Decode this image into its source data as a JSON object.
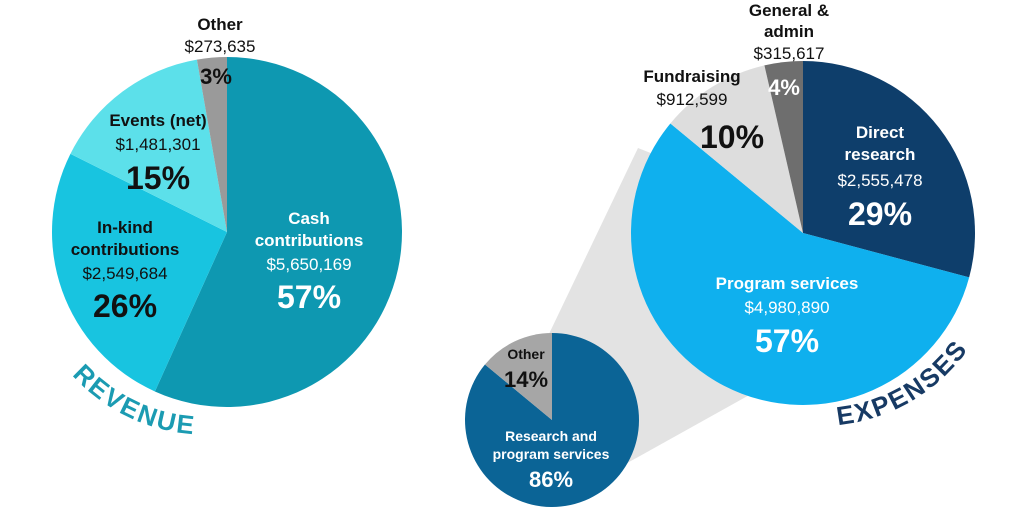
{
  "chart_data": [
    {
      "type": "pie",
      "title": "REVENUE",
      "colors": {
        "title": "#1b9bb2"
      },
      "slices": [
        {
          "name": "Cash contributions",
          "value": 5650169,
          "value_label": "$5,650,169",
          "percent": "57%",
          "color": "#0e98b1",
          "text_color": "#ffffff"
        },
        {
          "name": "In-kind contributions",
          "value": 2549684,
          "value_label": "$2,549,684",
          "percent": "26%",
          "color": "#18c4e0",
          "text_color": "#111111"
        },
        {
          "name": "Events (net)",
          "value": 1481301,
          "value_label": "$1,481,301",
          "percent": "15%",
          "color": "#5ce0ea",
          "text_color": "#111111"
        },
        {
          "name": "Other",
          "value": 273635,
          "value_label": "$273,635",
          "percent": "3%",
          "color": "#9a9a9a",
          "text_color": "#111111"
        }
      ]
    },
    {
      "type": "pie",
      "title": "EXPENSES",
      "colors": {
        "title": "#173a64"
      },
      "slices": [
        {
          "name": "Direct research",
          "value": 2555478,
          "value_label": "$2,555,478",
          "percent": "29%",
          "color": "#0e3e6b",
          "text_color": "#ffffff"
        },
        {
          "name": "Program services",
          "value": 4980890,
          "value_label": "$4,980,890",
          "percent": "57%",
          "color": "#0fb0ee",
          "text_color": "#ffffff"
        },
        {
          "name": "Fundraising",
          "value": 912599,
          "value_label": "$912,599",
          "percent": "10%",
          "color": "#dddddd",
          "text_color": "#111111"
        },
        {
          "name": "General & admin",
          "value": 315617,
          "value_label": "$315,617",
          "percent": "4%",
          "color": "#6e6e6e",
          "text_color": "#ffffff"
        }
      ]
    },
    {
      "type": "pie",
      "title": "",
      "slices": [
        {
          "name": "Research and program services",
          "value": 86,
          "percent": "86%",
          "color": "#0b6496",
          "text_color": "#ffffff"
        },
        {
          "name": "Other",
          "value": 14,
          "percent": "14%",
          "color": "#a6a6a6",
          "text_color": "#111111"
        }
      ]
    }
  ],
  "labels": {
    "revenue": {
      "cash_l1": "Cash",
      "cash_l2": "contributions",
      "inkind_l1": "In-kind",
      "inkind_l2": "contributions",
      "events_l1": "Events (net)",
      "other_l1": "Other"
    },
    "expenses": {
      "direct_l1": "Direct",
      "direct_l2": "research",
      "program_l1": "Program services",
      "fund_l1": "Fundraising",
      "ga_l1": "General &",
      "ga_l2": "admin"
    },
    "sub": {
      "rps_l1": "Research and",
      "rps_l2": "program services",
      "other_l1": "Other"
    }
  }
}
